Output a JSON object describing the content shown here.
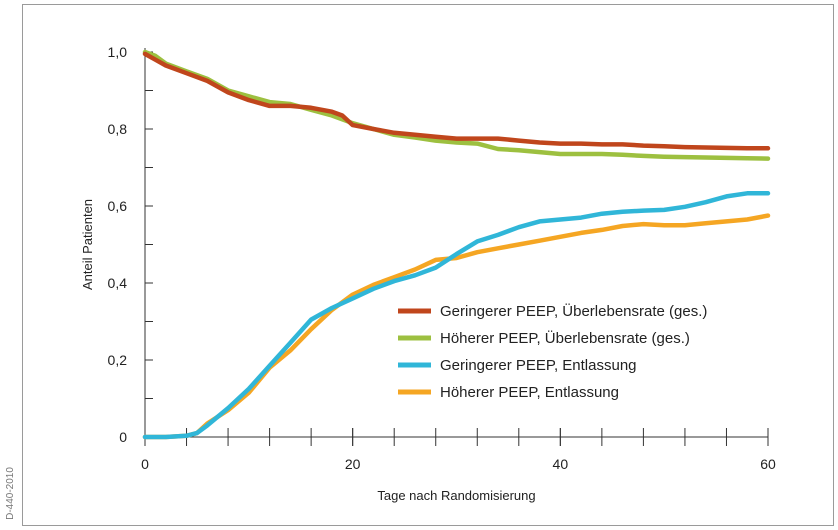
{
  "side_code": "D-440-2010",
  "chart_data": {
    "type": "line",
    "xlabel": "Tage nach Randomisierung",
    "ylabel": "Anteil Patienten",
    "xlim": [
      0,
      60
    ],
    "ylim": [
      0,
      1.0
    ],
    "x_ticks": [
      0,
      20,
      40,
      60
    ],
    "x_tick_labels": [
      "0",
      "20",
      "40",
      "60"
    ],
    "y_ticks": [
      0,
      0.2,
      0.4,
      0.6,
      0.8,
      1.0
    ],
    "y_tick_labels": [
      "0",
      "0,2",
      "0,4",
      "0,6",
      "0,8",
      "1,0"
    ],
    "grid": false,
    "legend_position": "lower-right",
    "series": [
      {
        "name": "Geringerer PEEP, Überlebensrate (ges.)",
        "color": "#c0461c",
        "x": [
          0,
          1,
          2,
          4,
          6,
          8,
          10,
          12,
          14,
          16,
          18,
          19,
          20,
          22,
          24,
          26,
          28,
          30,
          32,
          34,
          36,
          38,
          40,
          42,
          44,
          46,
          48,
          50,
          52,
          54,
          56,
          58,
          60
        ],
        "y": [
          0.995,
          0.98,
          0.965,
          0.945,
          0.925,
          0.895,
          0.875,
          0.86,
          0.86,
          0.855,
          0.845,
          0.835,
          0.81,
          0.8,
          0.79,
          0.785,
          0.78,
          0.775,
          0.775,
          0.775,
          0.77,
          0.765,
          0.762,
          0.762,
          0.76,
          0.76,
          0.757,
          0.755,
          0.753,
          0.752,
          0.751,
          0.75,
          0.75
        ]
      },
      {
        "name": "Höherer PEEP, Überlebensrate (ges.)",
        "color": "#9dc040",
        "x": [
          0,
          1,
          2,
          4,
          6,
          8,
          10,
          12,
          14,
          16,
          18,
          20,
          22,
          24,
          26,
          28,
          30,
          32,
          34,
          36,
          38,
          40,
          42,
          44,
          46,
          48,
          50,
          52,
          54,
          56,
          58,
          60
        ],
        "y": [
          1.0,
          0.99,
          0.97,
          0.95,
          0.93,
          0.9,
          0.885,
          0.87,
          0.865,
          0.85,
          0.835,
          0.815,
          0.8,
          0.785,
          0.778,
          0.77,
          0.765,
          0.762,
          0.748,
          0.745,
          0.74,
          0.735,
          0.735,
          0.735,
          0.733,
          0.73,
          0.728,
          0.727,
          0.726,
          0.725,
          0.724,
          0.723
        ]
      },
      {
        "name": "Geringerer PEEP, Entlassung",
        "color": "#30b6d8",
        "x": [
          0,
          2,
          4,
          5,
          6,
          8,
          10,
          12,
          14,
          16,
          18,
          20,
          22,
          24,
          26,
          28,
          30,
          32,
          34,
          36,
          38,
          40,
          42,
          44,
          46,
          48,
          50,
          52,
          54,
          56,
          58,
          60
        ],
        "y": [
          0.0,
          0.0,
          0.003,
          0.01,
          0.03,
          0.075,
          0.125,
          0.185,
          0.245,
          0.305,
          0.335,
          0.36,
          0.385,
          0.405,
          0.42,
          0.44,
          0.475,
          0.508,
          0.525,
          0.545,
          0.56,
          0.565,
          0.57,
          0.58,
          0.585,
          0.588,
          0.59,
          0.598,
          0.61,
          0.625,
          0.633,
          0.633
        ]
      },
      {
        "name": "Höherer PEEP, Entlassung",
        "color": "#f5a623",
        "x": [
          0,
          2,
          4,
          5,
          6,
          8,
          10,
          12,
          14,
          16,
          18,
          20,
          22,
          24,
          26,
          28,
          30,
          32,
          34,
          36,
          38,
          40,
          42,
          44,
          46,
          48,
          50,
          52,
          54,
          56,
          58,
          60
        ],
        "y": [
          0.0,
          0.0,
          0.003,
          0.01,
          0.035,
          0.07,
          0.115,
          0.18,
          0.225,
          0.28,
          0.33,
          0.37,
          0.395,
          0.415,
          0.435,
          0.46,
          0.465,
          0.48,
          0.49,
          0.5,
          0.51,
          0.52,
          0.53,
          0.538,
          0.548,
          0.553,
          0.55,
          0.55,
          0.555,
          0.56,
          0.565,
          0.575
        ]
      }
    ]
  }
}
